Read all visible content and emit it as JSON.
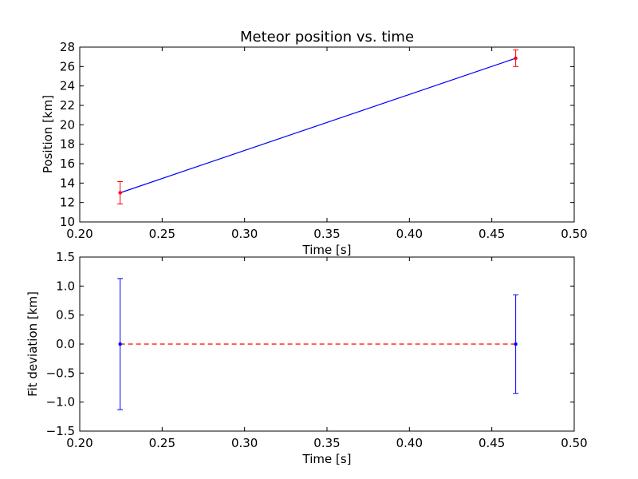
{
  "figure": {
    "background": "#ffffff"
  },
  "chart_data": [
    {
      "type": "line",
      "title": "Meteor position vs. time",
      "xlabel": "Time [s]",
      "ylabel": "Position [km]",
      "xlim": [
        0.2,
        0.5
      ],
      "ylim": [
        10,
        28
      ],
      "xticks": [
        0.2,
        0.25,
        0.3,
        0.35,
        0.4,
        0.45,
        0.5
      ],
      "xtick_labels": [
        "0.20",
        "0.25",
        "0.30",
        "0.35",
        "0.40",
        "0.45",
        "0.50"
      ],
      "yticks": [
        10,
        12,
        14,
        16,
        18,
        20,
        22,
        24,
        26,
        28
      ],
      "ytick_labels": [
        "10",
        "12",
        "14",
        "16",
        "18",
        "20",
        "22",
        "24",
        "26",
        "28"
      ],
      "grid": false,
      "legend": false,
      "series": [
        {
          "kind": "errorbar",
          "color": "#ff0000",
          "marker": true,
          "x": [
            0.2245,
            0.4645
          ],
          "y": [
            13.0,
            26.85
          ],
          "yerr": [
            1.15,
            0.85
          ]
        },
        {
          "kind": "line",
          "color": "#0000ff",
          "marker": false,
          "x": [
            0.2245,
            0.4645
          ],
          "y": [
            13.0,
            26.85
          ]
        }
      ]
    },
    {
      "type": "line",
      "title": "",
      "xlabel": "Time [s]",
      "ylabel": "Fit deviation [km]",
      "xlim": [
        0.2,
        0.5
      ],
      "ylim": [
        -1.5,
        1.5
      ],
      "xticks": [
        0.2,
        0.25,
        0.3,
        0.35,
        0.4,
        0.45,
        0.5
      ],
      "xtick_labels": [
        "0.20",
        "0.25",
        "0.30",
        "0.35",
        "0.40",
        "0.45",
        "0.50"
      ],
      "yticks": [
        -1.5,
        -1.0,
        -0.5,
        0.0,
        0.5,
        1.0,
        1.5
      ],
      "ytick_labels": [
        "−1.5",
        "−1.0",
        "−0.5",
        "0.0",
        "0.5",
        "1.0",
        "1.5"
      ],
      "grid": false,
      "legend": false,
      "series": [
        {
          "kind": "errorbar",
          "color": "#0000ff",
          "marker": true,
          "x": [
            0.2245,
            0.4645
          ],
          "y": [
            0.0,
            0.0
          ],
          "yerr": [
            1.13,
            0.85
          ]
        },
        {
          "kind": "line",
          "color": "#ff0000",
          "dashed": true,
          "marker": false,
          "x": [
            0.2245,
            0.4645
          ],
          "y": [
            0.0,
            0.0
          ]
        }
      ]
    }
  ]
}
